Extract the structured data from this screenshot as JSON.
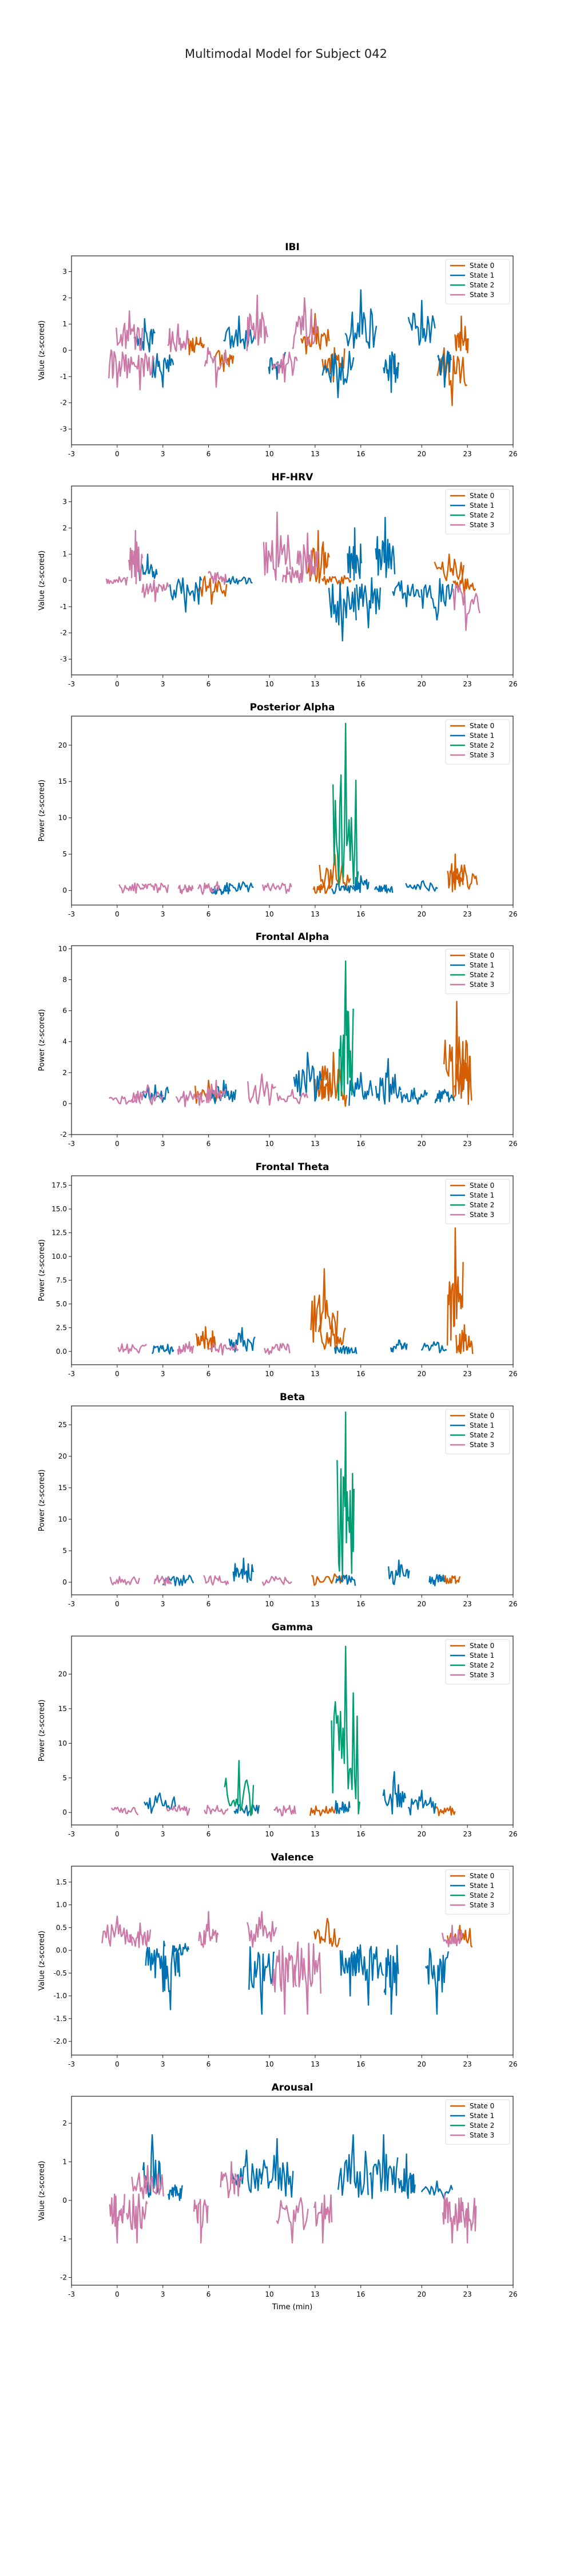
{
  "figure": {
    "title": "Multimodal Model for Subject 042"
  },
  "legend_labels": [
    "State 0",
    "State 1",
    "State 2",
    "State 3"
  ],
  "colors": {
    "State 0": "#d55e00",
    "State 1": "#0072b2",
    "State 2": "#009e73",
    "State 3": "#cc79a7"
  },
  "chart_data": [
    {
      "type": "line",
      "title": "IBI",
      "ylabel": "Value (z-scored)",
      "xlabel": "",
      "xlim": [
        -3,
        26
      ],
      "ylim": [
        -3.6,
        3.6
      ],
      "xticks": [
        -3,
        0,
        3,
        6,
        10,
        13,
        16,
        20,
        23,
        26
      ],
      "yticks": [
        -3,
        -2,
        -1,
        0,
        1,
        2,
        3
      ],
      "legend": "top-right",
      "series": [
        {
          "name": "State 0",
          "x": [
            5.2,
            7.0,
            13.0,
            14.2,
            22.0,
            22.6
          ],
          "y": [
            0.5,
            -0.8,
            1.4,
            -1.2,
            -2.1,
            1.3
          ]
        },
        {
          "name": "State 1",
          "x": [
            1.8,
            3.0,
            8.0,
            10.5,
            14.5,
            16.0,
            18.0,
            20.0,
            21.5
          ],
          "y": [
            1.2,
            -1.4,
            1.3,
            -1.1,
            -1.8,
            2.3,
            -1.6,
            1.9,
            -1.4
          ]
        },
        {
          "name": "State 2",
          "x": [],
          "y": []
        },
        {
          "name": "State 3",
          "x": [
            0.0,
            0.8,
            1.5,
            4.0,
            6.5,
            9.2,
            11.0,
            12.3
          ],
          "y": [
            -1.4,
            1.5,
            -1.5,
            1.0,
            -1.4,
            2.1,
            -1.2,
            2.0
          ]
        }
      ]
    },
    {
      "type": "line",
      "title": "HF-HRV",
      "ylabel": "Value (z-scored)",
      "xlabel": "",
      "xlim": [
        -3,
        26
      ],
      "ylim": [
        -3.6,
        3.6
      ],
      "xticks": [
        -3,
        0,
        3,
        6,
        10,
        13,
        16,
        20,
        23,
        26
      ],
      "yticks": [
        -3,
        -2,
        -1,
        0,
        1,
        2,
        3
      ],
      "legend": "top-right",
      "series": [
        {
          "name": "State 0",
          "x": [
            6.2,
            13.2,
            14.4,
            21.8,
            22.8
          ],
          "y": [
            -0.9,
            1.9,
            0.0,
            1.0,
            -0.6
          ]
        },
        {
          "name": "State 1",
          "x": [
            2.0,
            4.5,
            8.0,
            14.8,
            15.6,
            16.5,
            17.6,
            19.0,
            21.0
          ],
          "y": [
            1.0,
            -1.2,
            0.0,
            -2.3,
            2.0,
            -1.8,
            2.4,
            -1.0,
            -1.5
          ]
        },
        {
          "name": "State 2",
          "x": [],
          "y": []
        },
        {
          "name": "State 3",
          "x": [
            0.0,
            1.2,
            2.5,
            6.6,
            10.5,
            11.5,
            12.5,
            22.9
          ],
          "y": [
            0.0,
            1.9,
            -0.8,
            0.3,
            2.6,
            0.5,
            1.8,
            -1.9
          ]
        }
      ]
    },
    {
      "type": "line",
      "title": "Posterior Alpha",
      "ylabel": "Power (z-scored)",
      "xlabel": "",
      "xlim": [
        -3,
        26
      ],
      "ylim": [
        -2,
        24
      ],
      "xticks": [
        -3,
        0,
        3,
        6,
        10,
        13,
        16,
        20,
        23,
        26
      ],
      "yticks": [
        0,
        5,
        10,
        15,
        20
      ],
      "legend": "top-right",
      "series": [
        {
          "name": "State 0",
          "x": [
            13.5,
            14.3,
            22.2,
            22.8
          ],
          "y": [
            0.5,
            5.0,
            5.0,
            3.5
          ]
        },
        {
          "name": "State 1",
          "x": [
            6.8,
            8.0,
            14.8,
            16.0,
            17.5,
            20.0
          ],
          "y": [
            0.1,
            1.0,
            0.5,
            2.0,
            0.3,
            1.2
          ]
        },
        {
          "name": "State 2",
          "x": [
            15.0
          ],
          "y": [
            23.0
          ]
        },
        {
          "name": "State 3",
          "x": [
            1.0,
            2.5,
            4.5,
            6.0,
            10.5
          ],
          "y": [
            0.8,
            0.9,
            0.5,
            0.9,
            0.6
          ]
        }
      ]
    },
    {
      "type": "line",
      "title": "Frontal Alpha",
      "ylabel": "Power (z-scored)",
      "xlabel": "",
      "xlim": [
        -3,
        26
      ],
      "ylim": [
        -2,
        10.2
      ],
      "xticks": [
        -3,
        0,
        3,
        6,
        10,
        13,
        16,
        20,
        23,
        26
      ],
      "yticks": [
        -2,
        0,
        2,
        4,
        6,
        8,
        10
      ],
      "legend": "top-right",
      "series": [
        {
          "name": "State 0",
          "x": [
            6.0,
            13.5,
            14.2,
            22.3,
            22.7
          ],
          "y": [
            1.5,
            2.0,
            3.3,
            6.6,
            4.0
          ]
        },
        {
          "name": "State 1",
          "x": [
            2.5,
            7.0,
            12.5,
            16.0,
            17.8,
            19.5,
            21.5
          ],
          "y": [
            1.2,
            1.5,
            3.3,
            2.0,
            2.9,
            1.0,
            0.9
          ]
        },
        {
          "name": "State 2",
          "x": [
            15.0
          ],
          "y": [
            9.2
          ]
        },
        {
          "name": "State 3",
          "x": [
            0.5,
            2.0,
            4.8,
            6.5,
            9.5,
            11.5
          ],
          "y": [
            0.4,
            1.2,
            0.8,
            1.5,
            1.9,
            0.9
          ]
        }
      ]
    },
    {
      "type": "line",
      "title": "Frontal Theta",
      "ylabel": "Power (z-scored)",
      "xlabel": "",
      "xlim": [
        -3,
        26
      ],
      "ylim": [
        -1.4,
        18.5
      ],
      "xticks": [
        -3,
        0,
        3,
        6,
        10,
        13,
        16,
        20,
        23,
        26
      ],
      "yticks": [
        0.0,
        2.5,
        5.0,
        7.5,
        10.0,
        12.5,
        15.0,
        17.5
      ],
      "legend": "top-right",
      "series": [
        {
          "name": "State 0",
          "x": [
            5.8,
            13.6,
            14.1,
            22.2,
            22.8
          ],
          "y": [
            2.6,
            8.7,
            3.2,
            13.0,
            2.8
          ]
        },
        {
          "name": "State 1",
          "x": [
            3.0,
            8.2,
            15.0,
            18.5,
            20.8
          ],
          "y": [
            0.6,
            2.5,
            0.4,
            1.2,
            1.0
          ]
        },
        {
          "name": "State 2",
          "x": [],
          "y": []
        },
        {
          "name": "State 3",
          "x": [
            1.0,
            4.5,
            7.0,
            10.5
          ],
          "y": [
            0.7,
            0.8,
            0.6,
            0.7
          ]
        }
      ]
    },
    {
      "type": "line",
      "title": "Beta",
      "ylabel": "Power (z-scored)",
      "xlabel": "",
      "xlim": [
        -3,
        26
      ],
      "ylim": [
        -2,
        28
      ],
      "xticks": [
        -3,
        0,
        3,
        6,
        10,
        13,
        16,
        20,
        23,
        26
      ],
      "yticks": [
        0,
        5,
        10,
        15,
        20,
        25
      ],
      "legend": "top-right",
      "series": [
        {
          "name": "State 0",
          "x": [
            13.8,
            22.0
          ],
          "y": [
            0.9,
            1.0
          ]
        },
        {
          "name": "State 1",
          "x": [
            4.0,
            8.3,
            15.0,
            18.5,
            21.0
          ],
          "y": [
            0.6,
            3.8,
            1.0,
            3.5,
            1.2
          ]
        },
        {
          "name": "State 2",
          "x": [
            15.0
          ],
          "y": [
            27.0
          ]
        },
        {
          "name": "State 3",
          "x": [
            0.5,
            3.0,
            6.5,
            10.5
          ],
          "y": [
            0.4,
            0.6,
            0.6,
            0.5
          ]
        }
      ]
    },
    {
      "type": "line",
      "title": "Gamma",
      "ylabel": "Power (z-scored)",
      "xlabel": "",
      "xlim": [
        -3,
        26
      ],
      "ylim": [
        -1.8,
        25.5
      ],
      "xticks": [
        -3,
        0,
        3,
        6,
        10,
        13,
        16,
        20,
        23,
        26
      ],
      "yticks": [
        0,
        5,
        10,
        15,
        20
      ],
      "legend": "top-right",
      "series": [
        {
          "name": "State 0",
          "x": [
            13.5,
            21.5
          ],
          "y": [
            0.4,
            0.6
          ]
        },
        {
          "name": "State 1",
          "x": [
            2.8,
            8.5,
            14.8,
            18.2,
            20.0
          ],
          "y": [
            2.8,
            1.0,
            1.5,
            5.9,
            3.2
          ]
        },
        {
          "name": "State 2",
          "x": [
            8.0,
            15.0
          ],
          "y": [
            7.5,
            24.0
          ]
        },
        {
          "name": "State 3",
          "x": [
            0.5,
            4.0,
            6.5,
            11.0
          ],
          "y": [
            0.6,
            0.7,
            0.5,
            0.6
          ]
        }
      ]
    },
    {
      "type": "line",
      "title": "Valence",
      "ylabel": "Value (z-scored)",
      "xlabel": "",
      "xlim": [
        -3,
        26
      ],
      "ylim": [
        -2.3,
        1.85
      ],
      "xticks": [
        -3,
        0,
        3,
        6,
        10,
        13,
        16,
        20,
        23,
        26
      ],
      "yticks": [
        -2.0,
        -1.5,
        -1.0,
        -0.5,
        0.0,
        0.5,
        1.0,
        1.5
      ],
      "legend": "top-right",
      "series": [
        {
          "name": "State 0",
          "x": [
            13.8,
            22.5
          ],
          "y": [
            0.7,
            0.55
          ]
        },
        {
          "name": "State 1",
          "x": [
            2.5,
            3.5,
            4.2,
            9.5,
            15.3,
            16.5,
            18.0,
            21.0
          ],
          "y": [
            -0.6,
            -1.3,
            -0.1,
            -1.4,
            -1.0,
            -1.2,
            -1.4,
            -1.4
          ]
        },
        {
          "name": "State 2",
          "x": [],
          "y": []
        },
        {
          "name": "State 3",
          "x": [
            0.0,
            1.5,
            6.0,
            9.5,
            11.0,
            12.5,
            22.0
          ],
          "y": [
            0.75,
            0.6,
            0.85,
            0.85,
            -1.4,
            -1.4,
            0.55
          ]
        }
      ]
    },
    {
      "type": "line",
      "title": "Arousal",
      "ylabel": "Value (z-scored)",
      "xlabel": "Time (min)",
      "xlim": [
        -3,
        26
      ],
      "ylim": [
        -2.2,
        2.7
      ],
      "xticks": [
        -3,
        0,
        3,
        6,
        10,
        13,
        16,
        20,
        23,
        26
      ],
      "yticks": [
        -2,
        -1,
        0,
        1,
        2
      ],
      "legend": "top-right",
      "series": [
        {
          "name": "State 0",
          "x": [],
          "y": []
        },
        {
          "name": "State 1",
          "x": [
            2.3,
            3.8,
            8.5,
            10.5,
            15.5,
            17.5,
            19.0,
            21.0
          ],
          "y": [
            1.7,
            0.4,
            1.3,
            1.6,
            1.7,
            1.7,
            1.2,
            0.5
          ]
        },
        {
          "name": "State 2",
          "x": [],
          "y": []
        },
        {
          "name": "State 3",
          "x": [
            0.0,
            1.3,
            2.0,
            5.5,
            7.5,
            11.5,
            13.5,
            22.0,
            23.0
          ],
          "y": [
            -1.1,
            -1.1,
            0.9,
            -1.1,
            1.0,
            -1.1,
            -1.1,
            -1.1,
            -1.1
          ]
        }
      ]
    }
  ]
}
